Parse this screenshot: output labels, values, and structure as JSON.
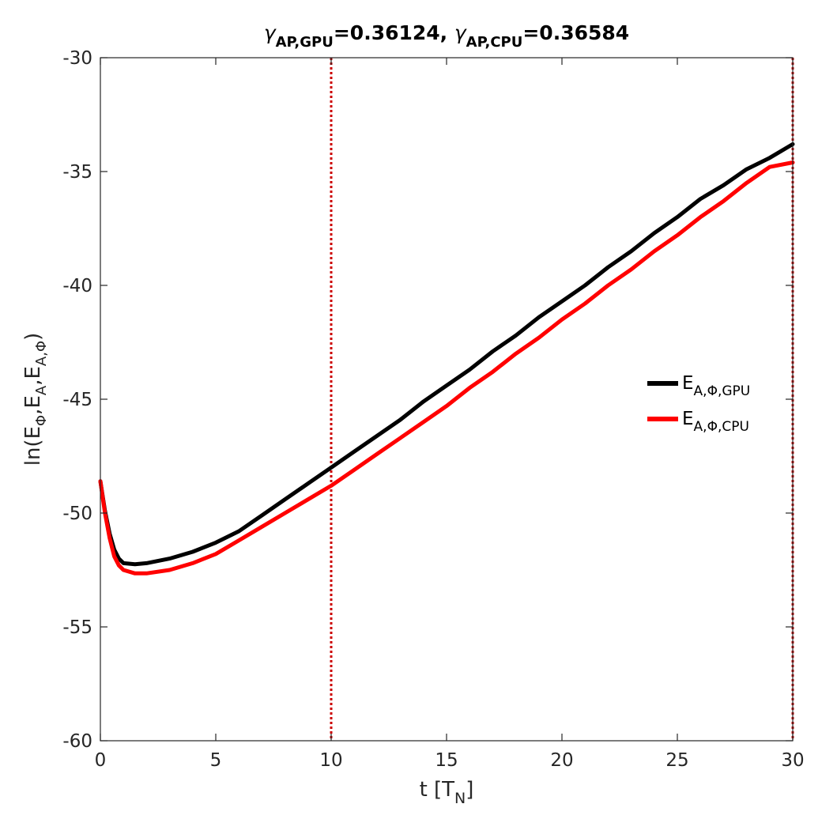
{
  "chart_data": {
    "type": "line",
    "title": {
      "gamma": "γ",
      "sub1": "AP,GPU",
      "value1": "=0.36124, ",
      "sub2": "AP,CPU",
      "value2": "=0.36584"
    },
    "xlabel": {
      "main": "t [T",
      "sub": "N",
      "end": "]"
    },
    "ylabel": {
      "p1": "ln(E",
      "s1": "Φ",
      "p2": ",E",
      "s2": "A",
      "p3": ",E",
      "s3": "A,Φ",
      "p4": ")"
    },
    "xlim": [
      0,
      30
    ],
    "ylim": [
      -60,
      -30
    ],
    "xticks": [
      0,
      5,
      10,
      15,
      20,
      25,
      30
    ],
    "yticks": [
      -30,
      -35,
      -40,
      -45,
      -50,
      -55,
      -60
    ],
    "xtick_labels": [
      "0",
      "5",
      "10",
      "15",
      "20",
      "25",
      "30"
    ],
    "ytick_labels": [
      "-30",
      "-35",
      "-40",
      "-45",
      "-50",
      "-55",
      "-60"
    ],
    "grid": false,
    "legend_position": "right-middle",
    "vlines": [
      {
        "x": 10,
        "color": "#cc0000",
        "style": "dotted"
      },
      {
        "x": 30,
        "color": "#cc0000",
        "style": "dotted"
      }
    ],
    "series": [
      {
        "name": "E",
        "legend_sub": "A,Φ,GPU",
        "color": "#000000",
        "x": [
          0,
          0.2,
          0.4,
          0.6,
          0.8,
          1.0,
          1.5,
          2,
          3,
          4,
          5,
          6,
          7,
          8,
          9,
          10,
          11,
          12,
          13,
          14,
          15,
          16,
          17,
          18,
          19,
          20,
          21,
          22,
          23,
          24,
          25,
          26,
          27,
          28,
          29,
          30
        ],
        "y": [
          -48.6,
          -49.9,
          -50.9,
          -51.6,
          -52.0,
          -52.2,
          -52.25,
          -52.2,
          -52.0,
          -51.7,
          -51.3,
          -50.8,
          -50.1,
          -49.4,
          -48.7,
          -48.0,
          -47.3,
          -46.6,
          -45.9,
          -45.1,
          -44.4,
          -43.7,
          -42.9,
          -42.2,
          -41.4,
          -40.7,
          -40.0,
          -39.2,
          -38.5,
          -37.7,
          -37.0,
          -36.2,
          -35.6,
          -34.9,
          -34.4,
          -33.8
        ]
      },
      {
        "name": "E",
        "legend_sub": "A,Φ,CPU",
        "color": "#ff0000",
        "x": [
          0,
          0.2,
          0.4,
          0.6,
          0.8,
          1.0,
          1.5,
          2,
          3,
          4,
          5,
          6,
          7,
          8,
          9,
          10,
          11,
          12,
          13,
          14,
          15,
          16,
          17,
          18,
          19,
          20,
          21,
          22,
          23,
          24,
          25,
          26,
          27,
          28,
          29,
          30
        ],
        "y": [
          -48.6,
          -50.0,
          -51.1,
          -51.9,
          -52.3,
          -52.5,
          -52.65,
          -52.65,
          -52.5,
          -52.2,
          -51.8,
          -51.2,
          -50.6,
          -50.0,
          -49.4,
          -48.8,
          -48.1,
          -47.4,
          -46.7,
          -46.0,
          -45.3,
          -44.5,
          -43.8,
          -43.0,
          -42.3,
          -41.5,
          -40.8,
          -40.0,
          -39.3,
          -38.5,
          -37.8,
          -37.0,
          -36.3,
          -35.5,
          -34.8,
          -34.6
        ]
      }
    ]
  }
}
